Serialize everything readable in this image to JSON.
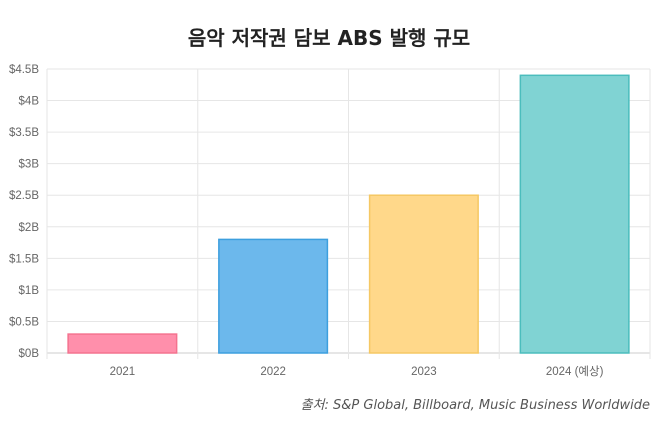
{
  "chart_data": {
    "type": "bar",
    "title": "음악 저작권 담보 ABS 발행 규모",
    "categories": [
      "2021",
      "2022",
      "2023",
      "2024 (예상)"
    ],
    "values": [
      0.3,
      1.8,
      2.5,
      4.4
    ],
    "unit": "billion USD",
    "ylim": [
      0,
      4.5
    ],
    "yticks": [
      "$0B",
      "$0.5B",
      "$1B",
      "$1.5B",
      "$2B",
      "$2.5B",
      "$3B",
      "$3.5B",
      "$4B",
      "$4.5B"
    ],
    "colors": {
      "fill": [
        "#ff8fab",
        "#6cb8ec",
        "#ffd88a",
        "#80d3d3"
      ],
      "stroke": [
        "#f4738f",
        "#3d9fde",
        "#f5c864",
        "#4bbdbd"
      ]
    },
    "grid": true,
    "legend": "none",
    "xlabel": "",
    "ylabel": ""
  },
  "source": "출처: S&P Global, Billboard, Music Business Worldwide"
}
